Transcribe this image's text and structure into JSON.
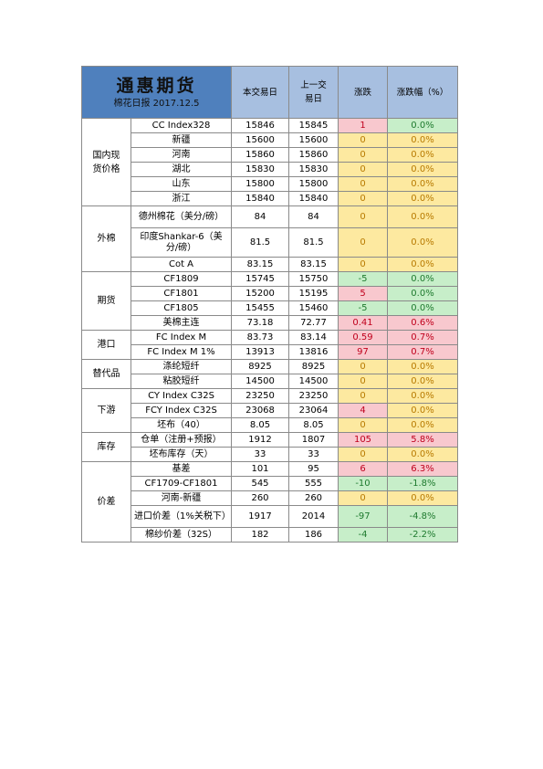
{
  "header": {
    "brand": "通惠期货",
    "subtitle": "棉花日报 2017.12.5",
    "col_today": "本交易日",
    "col_prev_line1": "上一交",
    "col_prev_line2": "易日",
    "col_change": "涨跌",
    "col_pct": "涨跌幅（%）"
  },
  "categories": {
    "domestic": "国内现货价格",
    "foreign": "外棉",
    "futures": "期货",
    "port": "港口",
    "substitute": "替代品",
    "downstream": "下游",
    "inventory": "库存",
    "spread": "价差"
  },
  "rows": [
    {
      "name": "CC Index328",
      "today": "15846",
      "prev": "15845",
      "chg": "1",
      "pct": "0.0%",
      "c": "r",
      "p": "g"
    },
    {
      "name": "新疆",
      "today": "15600",
      "prev": "15600",
      "chg": "0",
      "pct": "0.0%",
      "c": "y",
      "p": "y"
    },
    {
      "name": "河南",
      "today": "15860",
      "prev": "15860",
      "chg": "0",
      "pct": "0.0%",
      "c": "y",
      "p": "y"
    },
    {
      "name": "湖北",
      "today": "15830",
      "prev": "15830",
      "chg": "0",
      "pct": "0.0%",
      "c": "y",
      "p": "y"
    },
    {
      "name": "山东",
      "today": "15800",
      "prev": "15800",
      "chg": "0",
      "pct": "0.0%",
      "c": "y",
      "p": "y"
    },
    {
      "name": "浙江",
      "today": "15840",
      "prev": "15840",
      "chg": "0",
      "pct": "0.0%",
      "c": "y",
      "p": "y"
    },
    {
      "name": "德州棉花（美分/磅）",
      "today": "84",
      "prev": "84",
      "chg": "0",
      "pct": "0.0%",
      "c": "y",
      "p": "y"
    },
    {
      "name": "印度Shankar-6（美分/磅）",
      "today": "81.5",
      "prev": "81.5",
      "chg": "0",
      "pct": "0.0%",
      "c": "y",
      "p": "y"
    },
    {
      "name": "Cot A",
      "today": "83.15",
      "prev": "83.15",
      "chg": "0",
      "pct": "0.0%",
      "c": "y",
      "p": "y"
    },
    {
      "name": "CF1809",
      "today": "15745",
      "prev": "15750",
      "chg": "-5",
      "pct": "0.0%",
      "c": "g",
      "p": "g"
    },
    {
      "name": "CF1801",
      "today": "15200",
      "prev": "15195",
      "chg": "5",
      "pct": "0.0%",
      "c": "r",
      "p": "g"
    },
    {
      "name": "CF1805",
      "today": "15455",
      "prev": "15460",
      "chg": "-5",
      "pct": "0.0%",
      "c": "g",
      "p": "g"
    },
    {
      "name": "美棉主连",
      "today": "73.18",
      "prev": "72.77",
      "chg": "0.41",
      "pct": "0.6%",
      "c": "r",
      "p": "r"
    },
    {
      "name": "FC Index M",
      "today": "83.73",
      "prev": "83.14",
      "chg": "0.59",
      "pct": "0.7%",
      "c": "r",
      "p": "r"
    },
    {
      "name": "FC Index M 1%",
      "today": "13913",
      "prev": "13816",
      "chg": "97",
      "pct": "0.7%",
      "c": "r",
      "p": "r"
    },
    {
      "name": "涤纶短纤",
      "today": "8925",
      "prev": "8925",
      "chg": "0",
      "pct": "0.0%",
      "c": "y",
      "p": "y"
    },
    {
      "name": "粘胶短纤",
      "today": "14500",
      "prev": "14500",
      "chg": "0",
      "pct": "0.0%",
      "c": "y",
      "p": "y"
    },
    {
      "name": "CY Index C32S",
      "today": "23250",
      "prev": "23250",
      "chg": "0",
      "pct": "0.0%",
      "c": "y",
      "p": "y"
    },
    {
      "name": "FCY Index C32S",
      "today": "23068",
      "prev": "23064",
      "chg": "4",
      "pct": "0.0%",
      "c": "r",
      "p": "y"
    },
    {
      "name": "坯布（40）",
      "today": "8.05",
      "prev": "8.05",
      "chg": "0",
      "pct": "0.0%",
      "c": "y",
      "p": "y"
    },
    {
      "name": "仓单（注册+预报）",
      "today": "1912",
      "prev": "1807",
      "chg": "105",
      "pct": "5.8%",
      "c": "r",
      "p": "r"
    },
    {
      "name": "坯布库存（天）",
      "today": "33",
      "prev": "33",
      "chg": "0",
      "pct": "0.0%",
      "c": "y",
      "p": "y"
    },
    {
      "name": "基差",
      "today": "101",
      "prev": "95",
      "chg": "6",
      "pct": "6.3%",
      "c": "r",
      "p": "r"
    },
    {
      "name": "CF1709-CF1801",
      "today": "545",
      "prev": "555",
      "chg": "-10",
      "pct": "-1.8%",
      "c": "g",
      "p": "g"
    },
    {
      "name": "河南-新疆",
      "today": "260",
      "prev": "260",
      "chg": "0",
      "pct": "0.0%",
      "c": "y",
      "p": "y"
    },
    {
      "name": "进口价差（1%关税下）",
      "today": "1917",
      "prev": "2014",
      "chg": "-97",
      "pct": "-4.8%",
      "c": "g",
      "p": "g"
    },
    {
      "name": "棉纱价差（32S）",
      "today": "182",
      "prev": "186",
      "chg": "-4",
      "pct": "-2.2%",
      "c": "g",
      "p": "g"
    }
  ]
}
